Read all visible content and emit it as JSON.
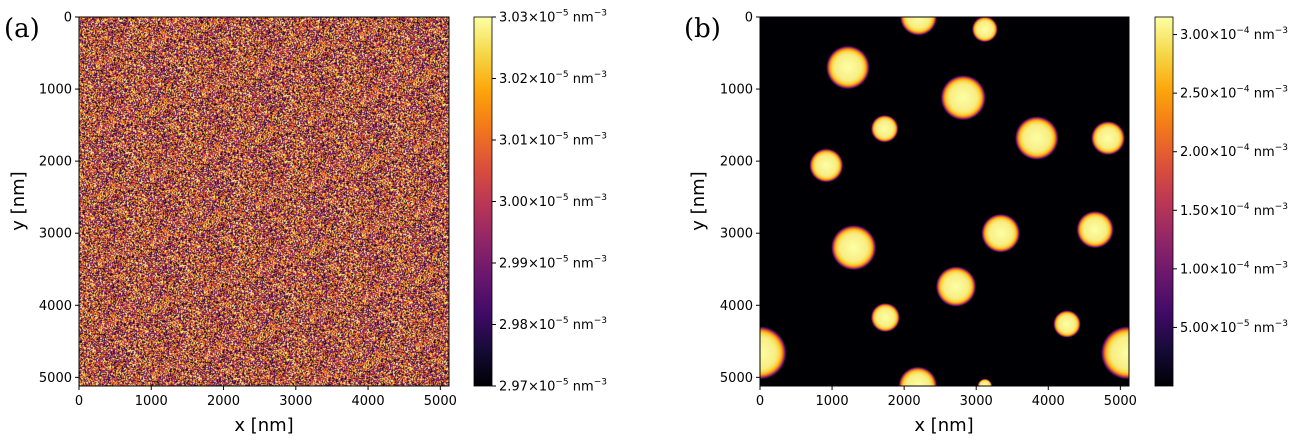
{
  "chart_data": [
    {
      "type": "heatmap",
      "panel_label": "(a)",
      "xlabel": "x [nm]",
      "ylabel": "y [nm]",
      "xlim": [
        0,
        5120
      ],
      "ylim": [
        5120,
        0
      ],
      "xticks": [
        0,
        1000,
        2000,
        3000,
        4000,
        5000
      ],
      "yticks": [
        0,
        1000,
        2000,
        3000,
        4000,
        5000
      ],
      "tick_labels": [
        "0",
        "1000",
        "2000",
        "3000",
        "4000",
        "5000"
      ],
      "colormap": "inferno",
      "description_of_field": "uniform random noise",
      "colorbar": {
        "min": 2.97e-05,
        "max": 3.03e-05,
        "ticks": [
          2.97e-05,
          2.98e-05,
          2.99e-05,
          3e-05,
          3.01e-05,
          3.02e-05,
          3.03e-05
        ],
        "mantissas": [
          "2.97",
          "2.98",
          "2.99",
          "3.00",
          "3.01",
          "3.02",
          "3.03"
        ],
        "exponent": "−5",
        "unit": "nm",
        "unit_exponent": "−3"
      }
    },
    {
      "type": "heatmap",
      "panel_label": "(b)",
      "xlabel": "x [nm]",
      "ylabel": "y [nm]",
      "xlim": [
        0,
        5120
      ],
      "ylim": [
        5120,
        0
      ],
      "xticks": [
        0,
        1000,
        2000,
        3000,
        4000,
        5000
      ],
      "yticks": [
        0,
        1000,
        2000,
        3000,
        4000,
        5000
      ],
      "tick_labels": [
        "0",
        "1000",
        "2000",
        "3000",
        "4000",
        "5000"
      ],
      "colormap": "inferno",
      "droplets": [
        {
          "x": 2200,
          "y": 0,
          "r": 230
        },
        {
          "x": 3120,
          "y": 170,
          "r": 160
        },
        {
          "x": 1220,
          "y": 700,
          "r": 270
        },
        {
          "x": 2820,
          "y": 1120,
          "r": 280
        },
        {
          "x": 1730,
          "y": 1550,
          "r": 170
        },
        {
          "x": 3840,
          "y": 1680,
          "r": 270
        },
        {
          "x": 4830,
          "y": 1680,
          "r": 210
        },
        {
          "x": 920,
          "y": 2060,
          "r": 210
        },
        {
          "x": 1300,
          "y": 3200,
          "r": 280
        },
        {
          "x": 3340,
          "y": 3000,
          "r": 240
        },
        {
          "x": 4650,
          "y": 2950,
          "r": 230
        },
        {
          "x": 2720,
          "y": 3740,
          "r": 250
        },
        {
          "x": 1740,
          "y": 4170,
          "r": 180
        },
        {
          "x": 4260,
          "y": 4260,
          "r": 170
        },
        {
          "x": 0,
          "y": 4660,
          "r": 330
        },
        {
          "x": 5100,
          "y": 4660,
          "r": 330
        },
        {
          "x": 2190,
          "y": 5120,
          "r": 240
        },
        {
          "x": 3120,
          "y": 5120,
          "r": 90
        }
      ],
      "colorbar": {
        "min": 0.0,
        "max": 0.000315,
        "ticks": [
          5e-05,
          0.0001,
          0.00015,
          0.0002,
          0.00025,
          0.0003
        ],
        "mantissas": [
          "5.00",
          "1.00",
          "1.50",
          "2.00",
          "2.50",
          "3.00"
        ],
        "exponents": [
          "−5",
          "−4",
          "−4",
          "−4",
          "−4",
          "−4"
        ],
        "unit": "nm",
        "unit_exponent": "−3"
      }
    }
  ]
}
